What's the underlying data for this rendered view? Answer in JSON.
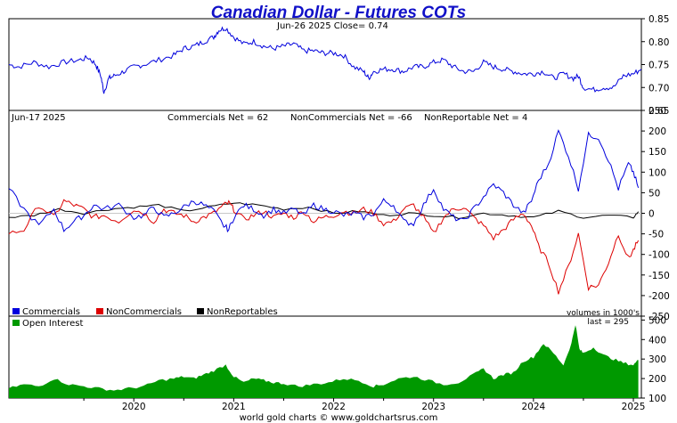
{
  "chart_data": [
    {
      "type": "line",
      "title": "Canadian Dollar - Futures COTs",
      "annotation": "Jun-26  2025   Close= 0.74",
      "ylim": [
        0.65,
        0.85
      ],
      "y_ticks": [
        "0.85",
        "0.80",
        "0.75",
        "0.70",
        "0.65"
      ],
      "x_domain": [
        2019.25,
        2025.58
      ],
      "colors": {
        "price": "#0000dd"
      },
      "series": [
        {
          "x": [
            2019.25,
            2019.35,
            2019.5,
            2019.65,
            2019.8,
            2019.95,
            2020.05,
            2020.12,
            2020.17,
            2020.2,
            2020.25,
            2020.3,
            2020.4,
            2020.5,
            2020.6,
            2020.75,
            2020.9,
            2021.0,
            2021.1,
            2021.2,
            2021.3,
            2021.35,
            2021.42,
            2021.5,
            2021.6,
            2021.7,
            2021.8,
            2021.9,
            2022.0,
            2022.1,
            2022.2,
            2022.3,
            2022.4,
            2022.5,
            2022.6,
            2022.7,
            2022.8,
            2022.85,
            2022.9,
            2023.0,
            2023.1,
            2023.2,
            2023.3,
            2023.4,
            2023.5,
            2023.6,
            2023.7,
            2023.8,
            2023.9,
            2024.0,
            2024.1,
            2024.2,
            2024.3,
            2024.4,
            2024.5,
            2024.6,
            2024.7,
            2024.8,
            2024.9,
            2024.95,
            2025.0,
            2025.1,
            2025.2,
            2025.3,
            2025.4,
            2025.5,
            2025.58
          ],
          "values": [
            0.75,
            0.745,
            0.755,
            0.745,
            0.755,
            0.76,
            0.765,
            0.75,
            0.725,
            0.69,
            0.72,
            0.725,
            0.735,
            0.745,
            0.75,
            0.76,
            0.77,
            0.785,
            0.79,
            0.8,
            0.81,
            0.825,
            0.83,
            0.81,
            0.795,
            0.8,
            0.79,
            0.785,
            0.79,
            0.795,
            0.78,
            0.78,
            0.775,
            0.775,
            0.77,
            0.745,
            0.735,
            0.72,
            0.735,
            0.74,
            0.74,
            0.735,
            0.745,
            0.745,
            0.755,
            0.76,
            0.745,
            0.735,
            0.735,
            0.755,
            0.745,
            0.74,
            0.735,
            0.73,
            0.73,
            0.735,
            0.72,
            0.73,
            0.72,
            0.725,
            0.7,
            0.695,
            0.7,
            0.7,
            0.725,
            0.73,
            0.74
          ]
        }
      ]
    },
    {
      "type": "line",
      "annotations": [
        "Jun-17  2025",
        "Commercials Net = 62",
        "NonCommercials Net = -66",
        "NonReportable Net = 4"
      ],
      "ylim": [
        -250,
        250
      ],
      "y_ticks": [
        "250",
        "200",
        "150",
        "100",
        "50",
        "0",
        "-50",
        "-100",
        "-150",
        "-200",
        "-250"
      ],
      "legend": [
        "Commercials",
        "NonCommercials",
        "NonReportables"
      ],
      "legend_position": "bottom-left",
      "note": "volumes in 1000's",
      "colors": {
        "Commercials": "#0000dd",
        "NonCommercials": "#dd0000",
        "NonReportables": "#000000",
        "zero": "#c8c8c8"
      },
      "x_domain": [
        2019.25,
        2025.58
      ],
      "series": [
        {
          "name": "Commercials",
          "x": [
            2019.25,
            2019.4,
            2019.55,
            2019.7,
            2019.8,
            2019.9,
            2020.0,
            2020.1,
            2020.2,
            2020.35,
            2020.5,
            2020.6,
            2020.7,
            2020.8,
            2020.9,
            2021.0,
            2021.1,
            2021.2,
            2021.3,
            2021.4,
            2021.45,
            2021.5,
            2021.6,
            2021.7,
            2021.8,
            2021.9,
            2022.0,
            2022.1,
            2022.2,
            2022.3,
            2022.4,
            2022.5,
            2022.6,
            2022.7,
            2022.8,
            2022.9,
            2023.0,
            2023.1,
            2023.2,
            2023.3,
            2023.4,
            2023.5,
            2023.6,
            2023.7,
            2023.8,
            2023.9,
            2024.0,
            2024.1,
            2024.2,
            2024.3,
            2024.4,
            2024.48,
            2024.55,
            2024.65,
            2024.75,
            2024.85,
            2024.95,
            2025.05,
            2025.15,
            2025.25,
            2025.35,
            2025.45,
            2025.5,
            2025.55
          ],
          "values": [
            60,
            10,
            -30,
            10,
            -40,
            -20,
            -5,
            20,
            10,
            20,
            -10,
            -5,
            15,
            -10,
            0,
            15,
            30,
            20,
            5,
            -30,
            -40,
            -10,
            20,
            10,
            -5,
            10,
            0,
            10,
            -5,
            20,
            10,
            5,
            -5,
            0,
            -10,
            0,
            30,
            20,
            -20,
            -25,
            20,
            60,
            10,
            -10,
            -20,
            10,
            40,
            70,
            50,
            20,
            0,
            30,
            80,
            120,
            200,
            140,
            60,
            190,
            185,
            130,
            60,
            120,
            100,
            62
          ]
        },
        {
          "name": "NonCommercials",
          "x": [
            2019.25,
            2019.4,
            2019.55,
            2019.7,
            2019.8,
            2019.9,
            2020.0,
            2020.1,
            2020.2,
            2020.35,
            2020.5,
            2020.6,
            2020.7,
            2020.8,
            2020.9,
            2021.0,
            2021.1,
            2021.2,
            2021.3,
            2021.4,
            2021.45,
            2021.5,
            2021.6,
            2021.7,
            2021.8,
            2021.9,
            2022.0,
            2022.1,
            2022.2,
            2022.3,
            2022.4,
            2022.5,
            2022.6,
            2022.7,
            2022.8,
            2022.9,
            2023.0,
            2023.1,
            2023.2,
            2023.3,
            2023.4,
            2023.5,
            2023.6,
            2023.7,
            2023.8,
            2023.9,
            2024.0,
            2024.1,
            2024.2,
            2024.3,
            2024.4,
            2024.48,
            2024.55,
            2024.65,
            2024.75,
            2024.85,
            2024.95,
            2025.05,
            2025.15,
            2025.25,
            2025.35,
            2025.45,
            2025.5,
            2025.55
          ],
          "values": [
            -50,
            -40,
            20,
            -10,
            30,
            20,
            10,
            -10,
            -5,
            -20,
            10,
            0,
            -20,
            10,
            0,
            -5,
            -20,
            -10,
            0,
            20,
            25,
            10,
            -15,
            -5,
            5,
            -10,
            0,
            -10,
            5,
            -20,
            -10,
            -5,
            5,
            0,
            10,
            0,
            -25,
            -20,
            10,
            20,
            -10,
            -50,
            -10,
            10,
            15,
            -10,
            -30,
            -60,
            -40,
            -15,
            0,
            -30,
            -80,
            -120,
            -190,
            -130,
            -50,
            -180,
            -175,
            -120,
            -50,
            -110,
            -90,
            -66
          ]
        },
        {
          "name": "NonReportables",
          "x": [
            2019.25,
            2019.5,
            2019.75,
            2020.0,
            2020.25,
            2020.5,
            2020.75,
            2021.0,
            2021.25,
            2021.5,
            2021.75,
            2022.0,
            2022.25,
            2022.5,
            2022.75,
            2023.0,
            2023.25,
            2023.5,
            2023.75,
            2024.0,
            2024.25,
            2024.5,
            2024.75,
            2025.0,
            2025.25,
            2025.5,
            2025.55
          ],
          "values": [
            -10,
            -5,
            10,
            0,
            10,
            15,
            20,
            5,
            15,
            25,
            20,
            10,
            15,
            0,
            5,
            -5,
            0,
            -5,
            -10,
            0,
            -5,
            -10,
            5,
            -10,
            -5,
            -10,
            4
          ]
        }
      ]
    },
    {
      "type": "area",
      "legend": [
        "Open Interest"
      ],
      "legend_position": "top-left",
      "annotation": "last = 295",
      "ylim": [
        100,
        520
      ],
      "y_ticks": [
        "500",
        "400",
        "300",
        "200",
        "100"
      ],
      "x_ticks": [
        "2020",
        "2021",
        "2022",
        "2023",
        "2024",
        "2025"
      ],
      "footer": "world gold charts © www.goldchartsrus.com",
      "colors": {
        "Open Interest": "#009900"
      },
      "x_domain": [
        2019.25,
        2025.58
      ],
      "series": [
        {
          "name": "Open Interest",
          "x": [
            2019.25,
            2019.4,
            2019.55,
            2019.7,
            2019.85,
            2020.0,
            2020.15,
            2020.3,
            2020.45,
            2020.6,
            2020.75,
            2020.9,
            2021.0,
            2021.1,
            2021.2,
            2021.3,
            2021.42,
            2021.5,
            2021.6,
            2021.7,
            2021.8,
            2021.9,
            2022.0,
            2022.15,
            2022.3,
            2022.45,
            2022.6,
            2022.75,
            2022.9,
            2023.0,
            2023.15,
            2023.3,
            2023.45,
            2023.6,
            2023.75,
            2023.9,
            2024.0,
            2024.1,
            2024.2,
            2024.3,
            2024.4,
            2024.5,
            2024.6,
            2024.7,
            2024.8,
            2024.88,
            2024.92,
            2024.96,
            2025.0,
            2025.1,
            2025.2,
            2025.3,
            2025.4,
            2025.5,
            2025.55
          ],
          "values": [
            150,
            170,
            160,
            200,
            170,
            160,
            150,
            140,
            150,
            160,
            190,
            200,
            210,
            200,
            220,
            240,
            270,
            210,
            180,
            200,
            190,
            180,
            175,
            160,
            170,
            180,
            200,
            190,
            160,
            170,
            200,
            210,
            190,
            170,
            180,
            220,
            250,
            200,
            220,
            230,
            290,
            310,
            380,
            330,
            270,
            380,
            480,
            350,
            330,
            360,
            320,
            300,
            280,
            270,
            295
          ]
        }
      ]
    }
  ]
}
